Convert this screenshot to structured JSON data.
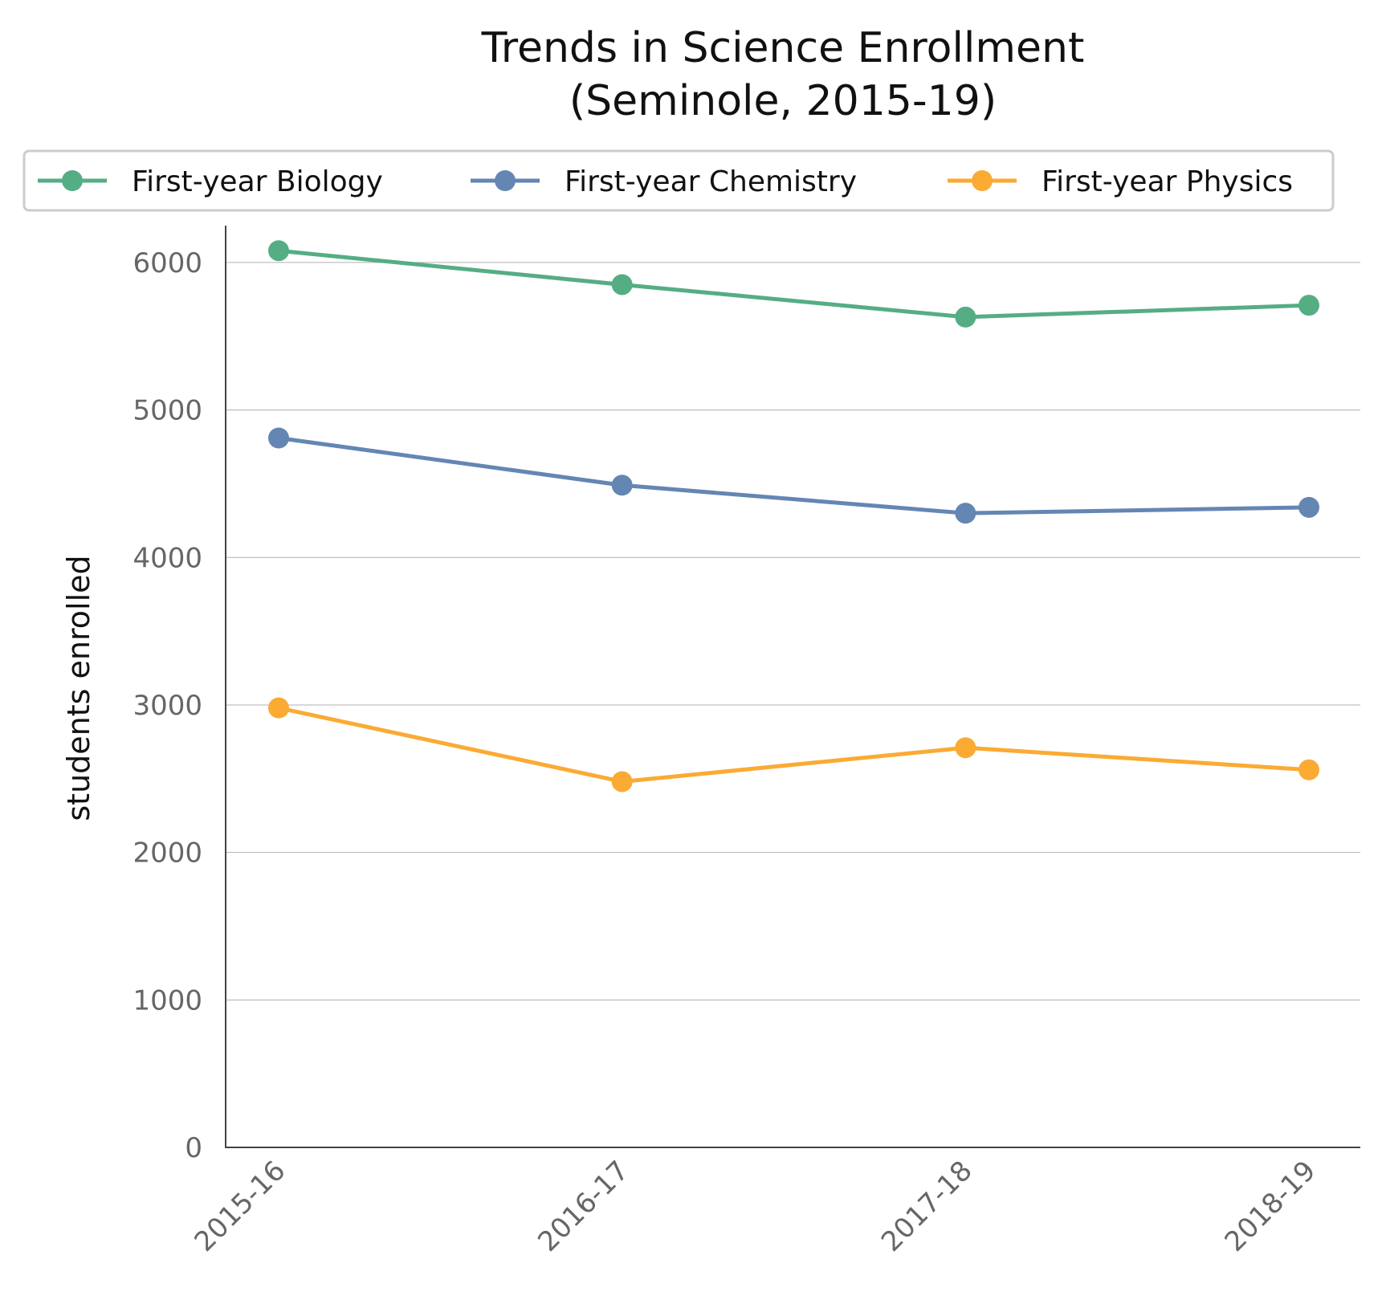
{
  "chart_data": {
    "type": "line",
    "title_line1": "Trends in Science Enrollment",
    "title_line2": "(Seminole, 2015-19)",
    "xlabel": "",
    "ylabel": "students enrolled",
    "categories": [
      "2015-16",
      "2016-17",
      "2017-18",
      "2018-19"
    ],
    "ylim": [
      0,
      6250
    ],
    "yticks": [
      0,
      1000,
      2000,
      3000,
      4000,
      5000,
      6000
    ],
    "grid": true,
    "legend_position": "top",
    "series": [
      {
        "name": "First-year Biology",
        "color": "#55ad84",
        "values": [
          6080,
          5850,
          5630,
          5710
        ]
      },
      {
        "name": "First-year Chemistry",
        "color": "#6486b3",
        "values": [
          4810,
          4490,
          4300,
          4340
        ]
      },
      {
        "name": "First-year Physics",
        "color": "#fbaa34",
        "values": [
          2980,
          2480,
          2710,
          2560
        ]
      }
    ]
  }
}
